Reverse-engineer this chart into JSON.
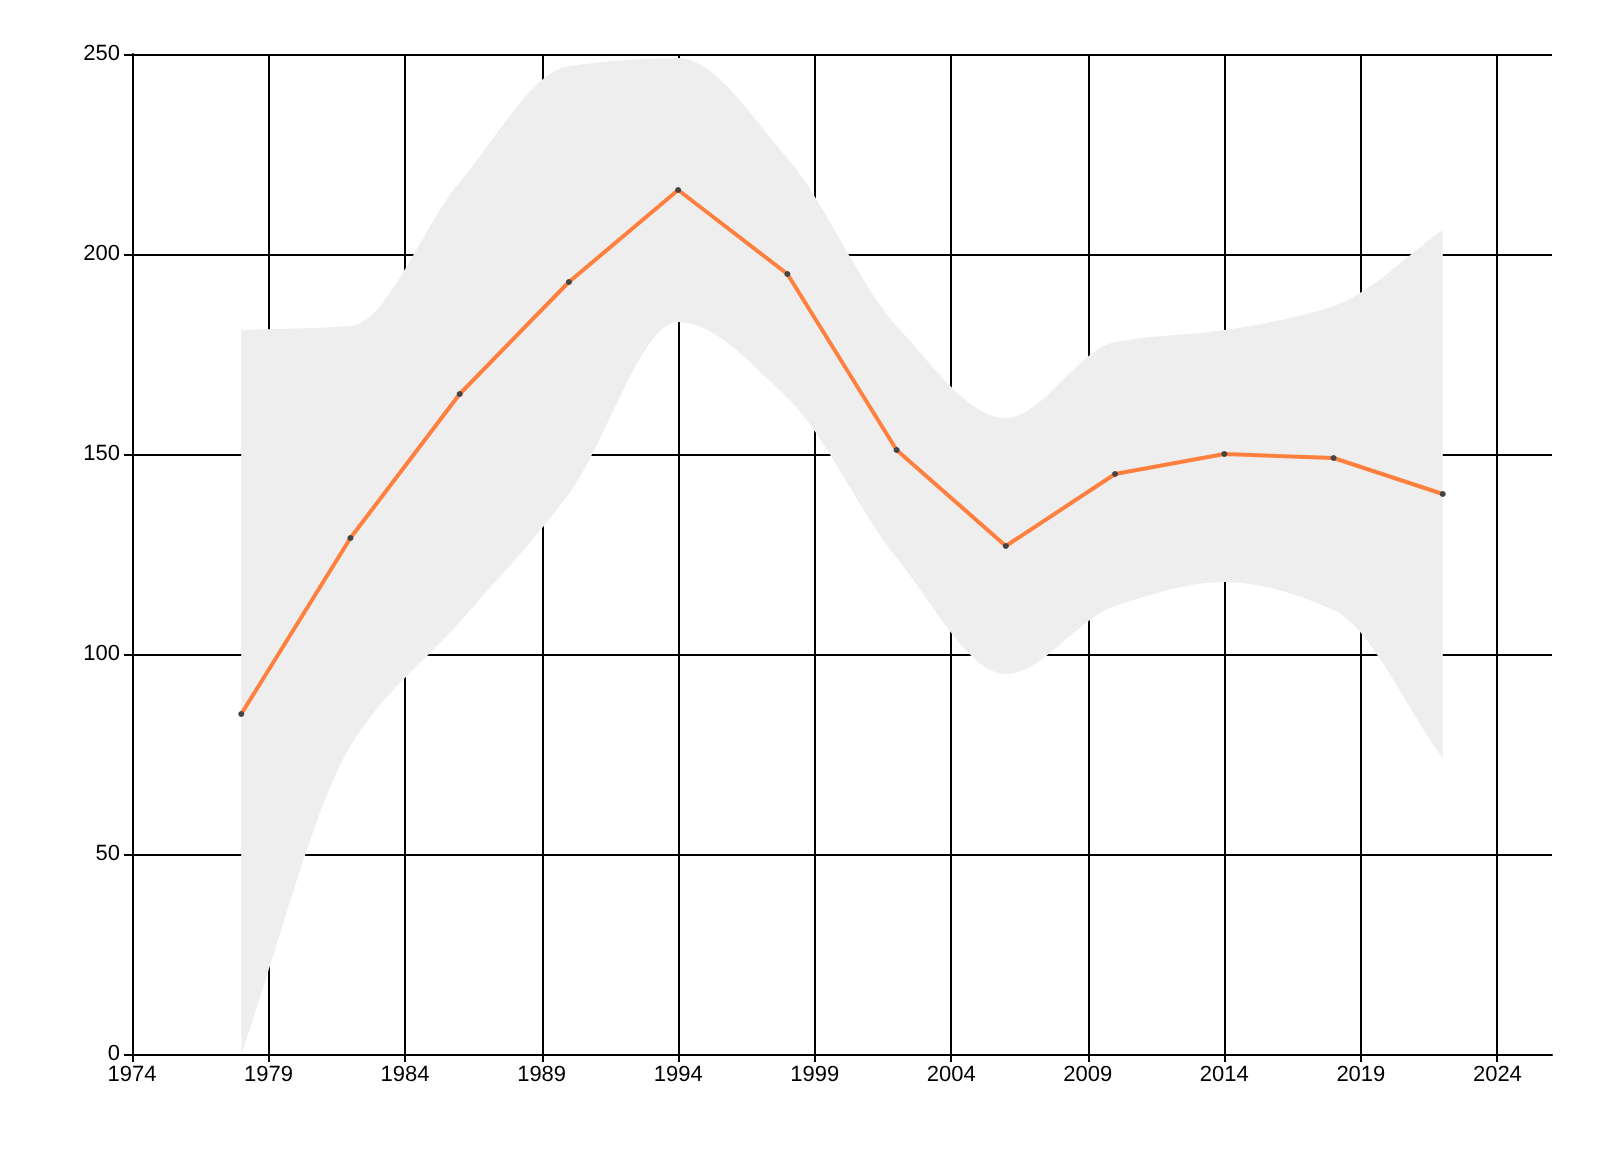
{
  "chart_data": {
    "type": "line",
    "x": [
      1978,
      1982,
      1986,
      1990,
      1994,
      1998,
      2002,
      2006,
      2010,
      2014,
      2018,
      2022
    ],
    "series": [
      {
        "color": "#ff7f3f",
        "values": [
          85,
          129,
          165,
          193,
          216,
          195,
          151,
          127,
          145,
          150,
          149,
          140
        ],
        "lower": [
          0,
          77,
          108,
          140,
          183,
          164,
          124,
          95,
          112,
          118,
          111,
          74
        ],
        "upper": [
          181,
          182,
          218,
          247,
          249,
          224,
          182,
          159,
          178,
          181,
          187,
          206
        ]
      }
    ],
    "xlim": [
      1974,
      2026
    ],
    "xticks": [
      1974,
      1979,
      1984,
      1989,
      1994,
      1999,
      2004,
      2009,
      2014,
      2019,
      2024
    ],
    "ylim": [
      0,
      250
    ],
    "yticks": [
      0,
      50,
      100,
      150,
      200,
      250
    ],
    "grid": true,
    "marker": "circle",
    "line_style": "solid"
  }
}
